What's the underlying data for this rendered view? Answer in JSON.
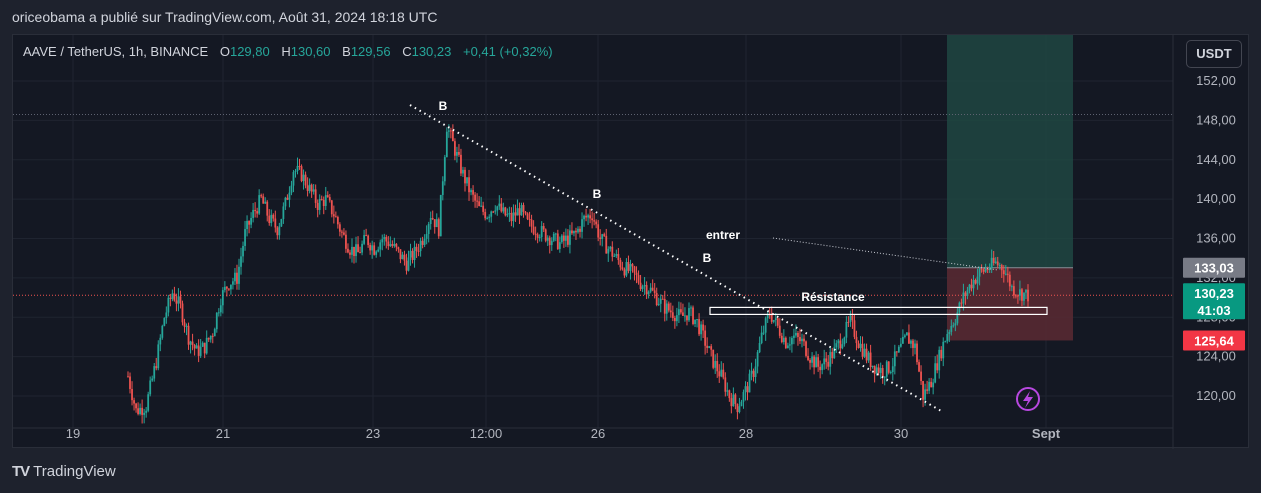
{
  "header": {
    "publisher_line": "oriceobama a publié sur TradingView.com, Août 31, 2024 18:18 UTC"
  },
  "legend": {
    "symbol": "AAVE / TetherUS, 1h, BINANCE",
    "open_label": "O",
    "open": "129,80",
    "high_label": "H",
    "high": "130,60",
    "low_label": "B",
    "low": "129,56",
    "close_label": "C",
    "close": "130,23",
    "change": "+0,41 (+0,32%)"
  },
  "currency_button": "USDT",
  "footer": {
    "brand": "TradingView",
    "logo": "TV"
  },
  "colors": {
    "up": "#26a69a",
    "down": "#ef5350",
    "background": "#141823",
    "profit_zone": "#1f4a44",
    "loss_zone": "#5a2a33",
    "grid": "#1f2430"
  },
  "chart_data": {
    "type": "candlestick",
    "y_axis": {
      "ticks": [
        "120,00",
        "124,00",
        "128,00",
        "132,00",
        "136,00",
        "140,00",
        "144,00",
        "148,00",
        "152,00"
      ],
      "min": 117.5,
      "max": 156
    },
    "x_axis": {
      "ticks": [
        "19",
        "21",
        "23",
        "12:00",
        "26",
        "28",
        "30",
        "Sept"
      ]
    },
    "price_labels": {
      "target": "133,03",
      "current": "130,23",
      "countdown": "41:03",
      "stop": "125,64"
    },
    "annotations": [
      {
        "text": "B"
      },
      {
        "text": "B"
      },
      {
        "text": "B"
      },
      {
        "text": "entrer"
      },
      {
        "text": "Résistance"
      }
    ],
    "key_levels": {
      "high_dotted": 148.6,
      "current": 130.23,
      "entry": 133.03,
      "stop": 125.64,
      "resistance_top": 129.0,
      "resistance_bottom": 128.3
    },
    "path_points": [
      [
        0,
        122.0
      ],
      [
        4,
        118.5
      ],
      [
        9,
        119.0
      ],
      [
        14,
        123.5
      ],
      [
        18,
        128.0
      ],
      [
        22,
        130.5
      ],
      [
        26,
        129.0
      ],
      [
        30,
        126.0
      ],
      [
        34,
        124.5
      ],
      [
        38,
        125.0
      ],
      [
        42,
        126.5
      ],
      [
        46,
        130.0
      ],
      [
        50,
        131.5
      ],
      [
        54,
        132.0
      ],
      [
        58,
        136.5
      ],
      [
        62,
        138.5
      ],
      [
        66,
        140.0
      ],
      [
        70,
        138.0
      ],
      [
        74,
        137.0
      ],
      [
        78,
        139.5
      ],
      [
        82,
        143.0
      ],
      [
        86,
        142.5
      ],
      [
        90,
        141.0
      ],
      [
        94,
        139.5
      ],
      [
        98,
        140.0
      ],
      [
        102,
        138.5
      ],
      [
        106,
        136.5
      ],
      [
        110,
        135.0
      ],
      [
        114,
        134.5
      ],
      [
        118,
        136.0
      ],
      [
        122,
        135.0
      ],
      [
        126,
        136.0
      ],
      [
        130,
        135.5
      ],
      [
        134,
        134.5
      ],
      [
        138,
        133.5
      ],
      [
        142,
        134.5
      ],
      [
        146,
        136.0
      ],
      [
        150,
        138.5
      ],
      [
        154,
        137.0
      ],
      [
        158,
        147.5
      ],
      [
        162,
        145.0
      ],
      [
        166,
        142.5
      ],
      [
        170,
        140.5
      ],
      [
        174,
        139.0
      ],
      [
        178,
        138.5
      ],
      [
        182,
        139.5
      ],
      [
        186,
        138.5
      ],
      [
        190,
        138.0
      ],
      [
        194,
        139.0
      ],
      [
        198,
        137.5
      ],
      [
        202,
        137.0
      ],
      [
        206,
        136.5
      ],
      [
        210,
        136.0
      ],
      [
        214,
        135.5
      ],
      [
        218,
        136.0
      ],
      [
        222,
        136.5
      ],
      [
        226,
        138.0
      ],
      [
        230,
        138.5
      ],
      [
        234,
        136.0
      ],
      [
        238,
        135.0
      ],
      [
        242,
        134.0
      ],
      [
        246,
        133.0
      ],
      [
        250,
        132.5
      ],
      [
        254,
        131.5
      ],
      [
        258,
        131.0
      ],
      [
        262,
        130.0
      ],
      [
        266,
        129.0
      ],
      [
        270,
        128.5
      ],
      [
        274,
        128.0
      ],
      [
        278,
        128.5
      ],
      [
        282,
        127.5
      ],
      [
        286,
        125.5
      ],
      [
        290,
        123.5
      ],
      [
        294,
        122.0
      ],
      [
        298,
        120.0
      ],
      [
        302,
        119.0
      ],
      [
        306,
        120.5
      ],
      [
        310,
        122.5
      ],
      [
        314,
        126.0
      ],
      [
        318,
        128.5
      ],
      [
        322,
        127.0
      ],
      [
        326,
        125.5
      ],
      [
        330,
        126.0
      ],
      [
        334,
        125.5
      ],
      [
        338,
        124.0
      ],
      [
        342,
        123.0
      ],
      [
        346,
        123.5
      ],
      [
        350,
        124.5
      ],
      [
        354,
        126.0
      ],
      [
        358,
        127.5
      ],
      [
        362,
        125.5
      ],
      [
        366,
        124.0
      ],
      [
        370,
        123.0
      ],
      [
        374,
        122.5
      ],
      [
        378,
        123.0
      ],
      [
        382,
        124.5
      ],
      [
        386,
        126.0
      ],
      [
        390,
        125.0
      ],
      [
        394,
        120.0
      ],
      [
        398,
        121.5
      ],
      [
        402,
        124.0
      ],
      [
        406,
        126.5
      ],
      [
        410,
        128.0
      ],
      [
        414,
        130.0
      ],
      [
        418,
        131.5
      ],
      [
        422,
        132.5
      ],
      [
        426,
        133.0
      ],
      [
        430,
        133.5
      ],
      [
        434,
        133.0
      ],
      [
        438,
        131.0
      ],
      [
        442,
        130.5
      ],
      [
        446,
        130.23
      ]
    ]
  }
}
